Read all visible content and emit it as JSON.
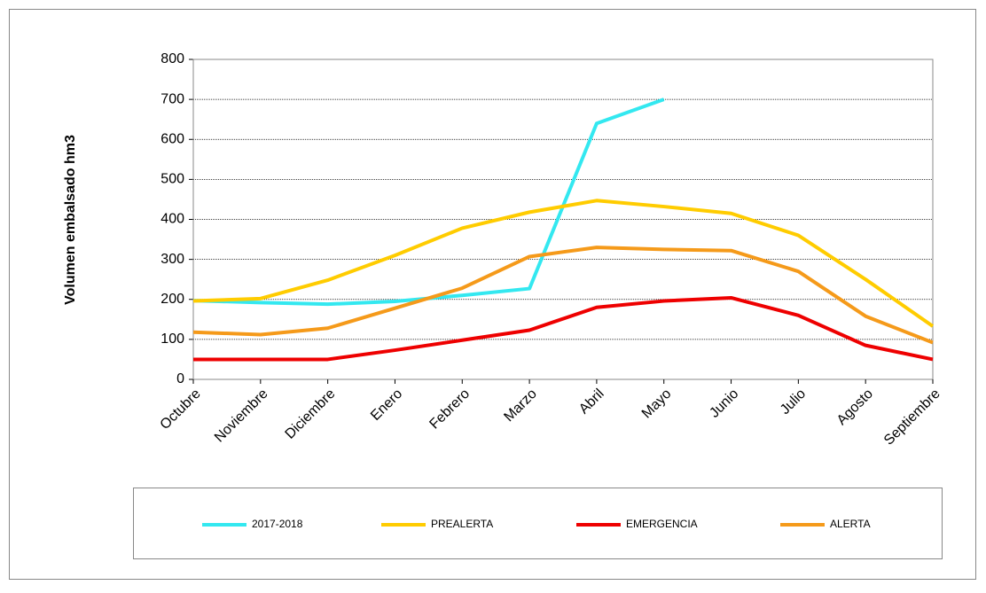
{
  "chart_data": {
    "type": "line",
    "ylabel": "Volumen embalsado hm3",
    "categories": [
      "Octubre",
      "Noviembre",
      "Diciembre",
      "Enero",
      "Febrero",
      "Marzo",
      "Abril",
      "Mayo",
      "Junio",
      "Julio",
      "Agosto",
      "Septiembre"
    ],
    "series": [
      {
        "name": "2017-2018",
        "color": "#33e8f0",
        "values": [
          197,
          192,
          188,
          195,
          210,
          227,
          640,
          700,
          null,
          null,
          null,
          null
        ]
      },
      {
        "name": "PREALERTA",
        "color": "#ffcc00",
        "values": [
          196,
          202,
          248,
          310,
          378,
          418,
          447,
          432,
          415,
          360,
          250,
          133
        ]
      },
      {
        "name": "EMERGENCIA",
        "color": "#ee0000",
        "values": [
          50,
          50,
          50,
          73,
          98,
          123,
          180,
          196,
          204,
          160,
          85,
          50
        ]
      },
      {
        "name": "ALERTA",
        "color": "#f59a1a",
        "values": [
          118,
          112,
          128,
          178,
          228,
          307,
          330,
          325,
          322,
          270,
          158,
          92
        ]
      }
    ],
    "ylim": [
      0,
      800
    ],
    "yticks": [
      0,
      100,
      200,
      300,
      400,
      500,
      600,
      700,
      800
    ],
    "grid": true,
    "legend": "bottom"
  }
}
